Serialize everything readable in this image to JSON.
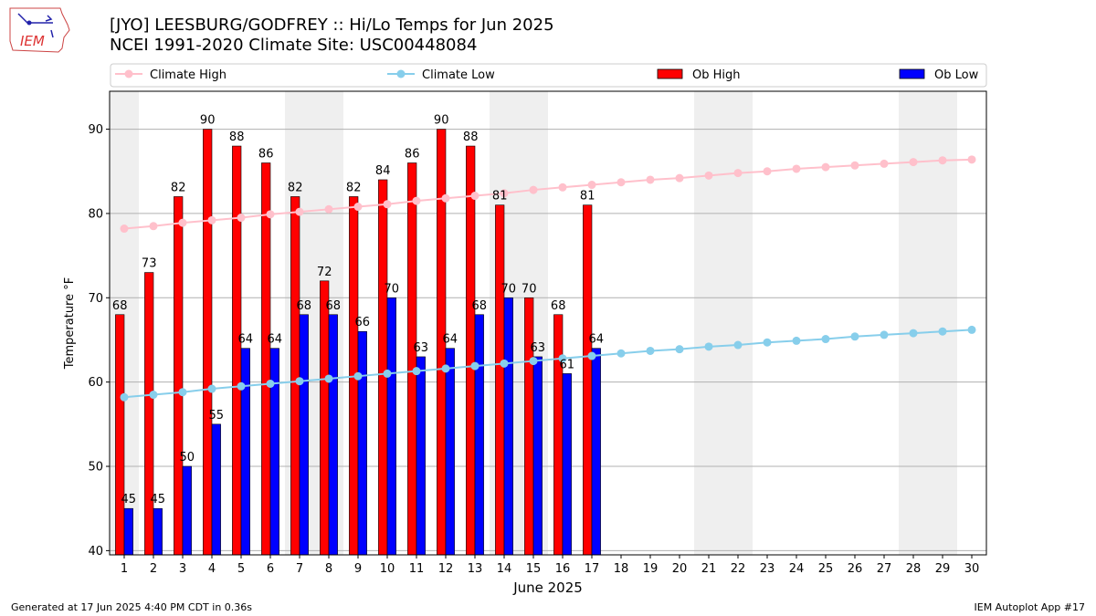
{
  "header": {
    "title_line1": "[JYO] LEESBURG/GODFREY :: Hi/Lo Temps for Jun 2025",
    "title_line2": "NCEI 1991-2020 Climate Site: USC00448084"
  },
  "logo": {
    "text": "IEM"
  },
  "footer": {
    "generated": "Generated at 17 Jun 2025 4:40 PM CDT in 0.36s",
    "app": "IEM Autoplot App #17"
  },
  "colors": {
    "climate_high": "#ffc0cb",
    "climate_low": "#87ceeb",
    "ob_high": "#ff0000",
    "ob_low": "#0000ff",
    "weekend_shade": "#efefef"
  },
  "chart_data": {
    "type": "bar",
    "title": "[JYO] LEESBURG/GODFREY :: Hi/Lo Temps for Jun 2025",
    "xlabel": "June 2025",
    "ylabel": "Temperature °F",
    "xlim": [
      0.5,
      30.5
    ],
    "ylim": [
      39.5,
      94.5
    ],
    "yticks": [
      40,
      50,
      60,
      70,
      80,
      90
    ],
    "grid": true,
    "legend_position": "top",
    "days": [
      1,
      2,
      3,
      4,
      5,
      6,
      7,
      8,
      9,
      10,
      11,
      12,
      13,
      14,
      15,
      16,
      17,
      18,
      19,
      20,
      21,
      22,
      23,
      24,
      25,
      26,
      27,
      28,
      29,
      30
    ],
    "weekend_spans": [
      [
        0.5,
        1.5
      ],
      [
        6.5,
        8.5
      ],
      [
        13.5,
        15.5
      ],
      [
        20.5,
        22.5
      ],
      [
        27.5,
        29.5
      ]
    ],
    "series": [
      {
        "name": "Climate High",
        "kind": "line",
        "values": [
          78.2,
          78.5,
          78.9,
          79.2,
          79.5,
          79.9,
          80.2,
          80.5,
          80.8,
          81.1,
          81.5,
          81.8,
          82.1,
          82.4,
          82.8,
          83.1,
          83.4,
          83.7,
          84.0,
          84.2,
          84.5,
          84.8,
          85.0,
          85.3,
          85.5,
          85.7,
          85.9,
          86.1,
          86.3,
          86.4
        ]
      },
      {
        "name": "Climate Low",
        "kind": "line",
        "values": [
          58.2,
          58.5,
          58.8,
          59.2,
          59.5,
          59.8,
          60.1,
          60.4,
          60.7,
          61.0,
          61.3,
          61.6,
          61.9,
          62.2,
          62.5,
          62.8,
          63.1,
          63.4,
          63.7,
          63.9,
          64.2,
          64.4,
          64.7,
          64.9,
          65.1,
          65.4,
          65.6,
          65.8,
          66.0,
          66.2
        ]
      },
      {
        "name": "Ob High",
        "kind": "bar",
        "values": [
          68,
          73,
          82,
          90,
          88,
          86,
          82,
          72,
          82,
          84,
          86,
          90,
          88,
          81,
          70,
          68,
          81
        ]
      },
      {
        "name": "Ob Low",
        "kind": "bar",
        "values": [
          45,
          45,
          50,
          55,
          64,
          64,
          68,
          68,
          66,
          70,
          63,
          64,
          68,
          70,
          63,
          61,
          64
        ]
      }
    ]
  }
}
